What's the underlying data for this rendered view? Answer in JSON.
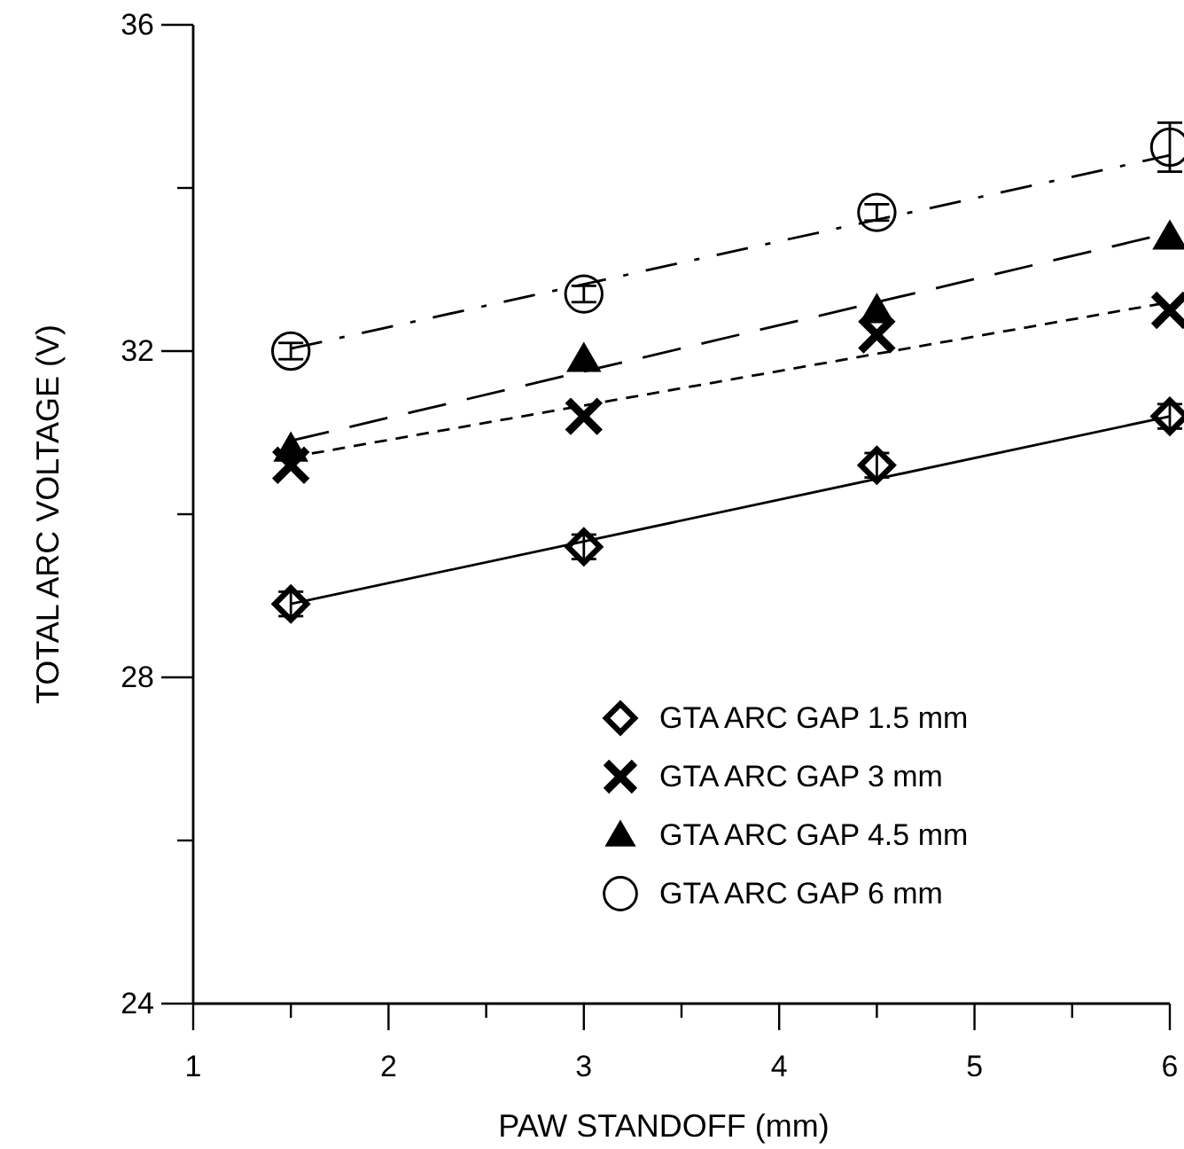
{
  "chart_data": {
    "type": "scatter",
    "xlabel": "PAW  STANDOFF  (mm)",
    "ylabel": "TOTAL  ARC  VOLTAGE  (V)",
    "xlim": [
      1,
      6
    ],
    "ylim": [
      24,
      36
    ],
    "xticks": [
      1,
      {
        "value": 1.5,
        "label": null
      },
      2,
      {
        "value": 2.5,
        "label": null
      },
      3,
      {
        "value": 3.5,
        "label": null
      },
      4,
      {
        "value": 4.5,
        "label": null
      },
      5,
      {
        "value": 5.5,
        "label": null
      },
      6
    ],
    "yticks": [
      24,
      {
        "value": 26,
        "label": null
      },
      28,
      {
        "value": 30,
        "label": null
      },
      32,
      {
        "value": 34,
        "label": null
      },
      36
    ],
    "legend": "bottom right",
    "series": [
      {
        "name": "GTA  ARC  GAP  1.5 mm",
        "marker": "diamond",
        "color": "#000000",
        "x": [
          1.5,
          3,
          4.5,
          6
        ],
        "values": [
          28.9,
          29.6,
          30.6,
          31.2
        ],
        "errors": [
          0.15,
          0.15,
          0.15,
          0.15
        ]
      },
      {
        "name": "GTA  ARC  GAP  3 mm",
        "marker": "cross",
        "color": "#000000",
        "x": [
          1.5,
          3,
          4.5,
          6
        ],
        "values": [
          30.6,
          31.2,
          32.2,
          32.5
        ]
      },
      {
        "name": "GTA  ARC  GAP  4.5 mm",
        "marker": "triangle",
        "color": "#000000",
        "x": [
          1.5,
          3,
          4.5,
          6
        ],
        "values": [
          30.8,
          31.9,
          32.5,
          33.4
        ]
      },
      {
        "name": "GTA  ARC  GAP  6 mm",
        "marker": "circle",
        "color": "#000000",
        "x": [
          1.5,
          3,
          4.5,
          6
        ],
        "values": [
          32.0,
          32.7,
          33.7,
          34.5
        ],
        "errors": [
          0.1,
          0.1,
          0.1,
          0.3
        ]
      },
      {
        "type": "line",
        "line_style": "solid",
        "color": "#000000",
        "x": [
          1.5,
          6
        ],
        "values": [
          28.9,
          31.2
        ]
      },
      {
        "type": "line",
        "line_style": "dotted",
        "color": "#000000",
        "x": [
          1.5,
          6
        ],
        "values": [
          30.7,
          32.6
        ]
      },
      {
        "type": "line",
        "line_style": "dashed",
        "color": "#000000",
        "x": [
          1.5,
          6
        ],
        "values": [
          30.9,
          33.45
        ]
      },
      {
        "type": "line",
        "line_style": "dashdot",
        "color": "#000000",
        "x": [
          1.5,
          6
        ],
        "values": [
          32.03,
          34.4
        ]
      }
    ]
  }
}
